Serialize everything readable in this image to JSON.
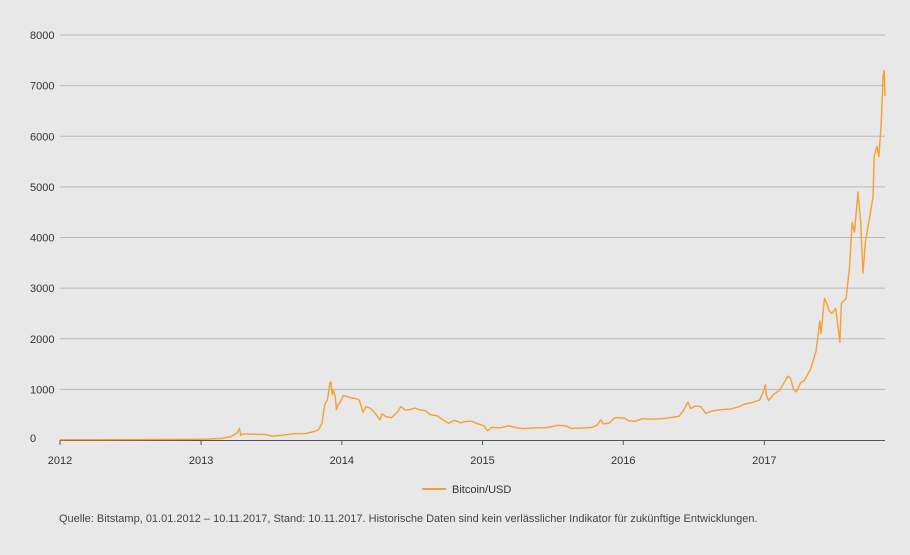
{
  "chart_data": {
    "type": "line",
    "series": [
      {
        "name": "Bitcoin/USD",
        "color": "#f5a030",
        "points": [
          [
            "2012-01-01",
            5
          ],
          [
            "2012-04-01",
            5
          ],
          [
            "2012-07-01",
            7
          ],
          [
            "2012-10-01",
            11
          ],
          [
            "2012-12-15",
            13
          ],
          [
            "2013-01-20",
            18
          ],
          [
            "2013-02-20",
            30
          ],
          [
            "2013-03-20",
            70
          ],
          [
            "2013-04-05",
            140
          ],
          [
            "2013-04-10",
            230
          ],
          [
            "2013-04-14",
            90
          ],
          [
            "2013-04-20",
            120
          ],
          [
            "2013-05-10",
            115
          ],
          [
            "2013-06-15",
            110
          ],
          [
            "2013-07-05",
            75
          ],
          [
            "2013-08-01",
            95
          ],
          [
            "2013-09-01",
            125
          ],
          [
            "2013-10-01",
            130
          ],
          [
            "2013-10-20",
            165
          ],
          [
            "2013-11-01",
            200
          ],
          [
            "2013-11-10",
            320
          ],
          [
            "2013-11-18",
            700
          ],
          [
            "2013-11-25",
            800
          ],
          [
            "2013-12-01",
            1130
          ],
          [
            "2013-12-04",
            1150
          ],
          [
            "2013-12-07",
            890
          ],
          [
            "2013-12-10",
            1000
          ],
          [
            "2013-12-15",
            850
          ],
          [
            "2013-12-18",
            600
          ],
          [
            "2013-12-22",
            700
          ],
          [
            "2013-12-28",
            750
          ],
          [
            "2014-01-05",
            880
          ],
          [
            "2014-01-15",
            860
          ],
          [
            "2014-01-25",
            830
          ],
          [
            "2014-02-05",
            820
          ],
          [
            "2014-02-15",
            790
          ],
          [
            "2014-02-25",
            550
          ],
          [
            "2014-03-05",
            660
          ],
          [
            "2014-03-15",
            630
          ],
          [
            "2014-03-25",
            560
          ],
          [
            "2014-04-05",
            450
          ],
          [
            "2014-04-10",
            400
          ],
          [
            "2014-04-15",
            520
          ],
          [
            "2014-04-25",
            460
          ],
          [
            "2014-05-10",
            440
          ],
          [
            "2014-05-25",
            550
          ],
          [
            "2014-06-03",
            660
          ],
          [
            "2014-06-15",
            590
          ],
          [
            "2014-06-25",
            600
          ],
          [
            "2014-07-10",
            630
          ],
          [
            "2014-07-25",
            590
          ],
          [
            "2014-08-05",
            580
          ],
          [
            "2014-08-18",
            500
          ],
          [
            "2014-09-05",
            480
          ],
          [
            "2014-09-20",
            400
          ],
          [
            "2014-10-05",
            330
          ],
          [
            "2014-10-20",
            390
          ],
          [
            "2014-11-05",
            340
          ],
          [
            "2014-11-20",
            370
          ],
          [
            "2014-12-05",
            370
          ],
          [
            "2014-12-20",
            320
          ],
          [
            "2015-01-05",
            280
          ],
          [
            "2015-01-14",
            180
          ],
          [
            "2015-01-25",
            250
          ],
          [
            "2015-02-15",
            240
          ],
          [
            "2015-03-10",
            280
          ],
          [
            "2015-03-25",
            250
          ],
          [
            "2015-04-15",
            225
          ],
          [
            "2015-05-15",
            240
          ],
          [
            "2015-06-15",
            245
          ],
          [
            "2015-07-05",
            270
          ],
          [
            "2015-07-15",
            290
          ],
          [
            "2015-08-05",
            280
          ],
          [
            "2015-08-20",
            230
          ],
          [
            "2015-09-15",
            235
          ],
          [
            "2015-10-10",
            245
          ],
          [
            "2015-10-25",
            290
          ],
          [
            "2015-11-04",
            400
          ],
          [
            "2015-11-10",
            320
          ],
          [
            "2015-11-25",
            330
          ],
          [
            "2015-12-10",
            440
          ],
          [
            "2015-12-20",
            440
          ],
          [
            "2016-01-05",
            430
          ],
          [
            "2016-01-15",
            380
          ],
          [
            "2016-02-01",
            370
          ],
          [
            "2016-02-20",
            420
          ],
          [
            "2016-03-10",
            410
          ],
          [
            "2016-04-10",
            420
          ],
          [
            "2016-05-10",
            450
          ],
          [
            "2016-05-25",
            470
          ],
          [
            "2016-06-05",
            580
          ],
          [
            "2016-06-17",
            750
          ],
          [
            "2016-06-24",
            620
          ],
          [
            "2016-07-05",
            670
          ],
          [
            "2016-07-20",
            660
          ],
          [
            "2016-08-02",
            530
          ],
          [
            "2016-08-20",
            575
          ],
          [
            "2016-09-15",
            605
          ],
          [
            "2016-10-05",
            610
          ],
          [
            "2016-10-25",
            650
          ],
          [
            "2016-11-10",
            710
          ],
          [
            "2016-12-01",
            740
          ],
          [
            "2016-12-20",
            790
          ],
          [
            "2016-12-28",
            930
          ],
          [
            "2017-01-04",
            1100
          ],
          [
            "2017-01-06",
            880
          ],
          [
            "2017-01-12",
            780
          ],
          [
            "2017-01-25",
            900
          ],
          [
            "2017-02-10",
            990
          ],
          [
            "2017-02-25",
            1180
          ],
          [
            "2017-03-03",
            1260
          ],
          [
            "2017-03-10",
            1220
          ],
          [
            "2017-03-18",
            1000
          ],
          [
            "2017-03-25",
            950
          ],
          [
            "2017-04-05",
            1130
          ],
          [
            "2017-04-15",
            1180
          ],
          [
            "2017-05-01",
            1400
          ],
          [
            "2017-05-15",
            1750
          ],
          [
            "2017-05-25",
            2350
          ],
          [
            "2017-05-28",
            2100
          ],
          [
            "2017-06-06",
            2800
          ],
          [
            "2017-06-12",
            2700
          ],
          [
            "2017-06-18",
            2550
          ],
          [
            "2017-06-25",
            2500
          ],
          [
            "2017-07-05",
            2600
          ],
          [
            "2017-07-16",
            1930
          ],
          [
            "2017-07-20",
            2700
          ],
          [
            "2017-08-01",
            2800
          ],
          [
            "2017-08-10",
            3400
          ],
          [
            "2017-08-17",
            4300
          ],
          [
            "2017-08-23",
            4100
          ],
          [
            "2017-09-01",
            4900
          ],
          [
            "2017-09-08",
            4300
          ],
          [
            "2017-09-14",
            3300
          ],
          [
            "2017-09-20",
            3900
          ],
          [
            "2017-09-30",
            4350
          ],
          [
            "2017-10-10",
            4800
          ],
          [
            "2017-10-13",
            5600
          ],
          [
            "2017-10-20",
            5800
          ],
          [
            "2017-10-25",
            5600
          ],
          [
            "2017-10-31",
            6200
          ],
          [
            "2017-11-05",
            7200
          ],
          [
            "2017-11-08",
            7300
          ],
          [
            "2017-11-10",
            6800
          ]
        ]
      }
    ],
    "x_ticks": [
      "2012",
      "2013",
      "2014",
      "2015",
      "2016",
      "2017"
    ],
    "y_ticks": [
      0,
      1000,
      2000,
      3000,
      4000,
      5000,
      6000,
      7000,
      8000
    ],
    "ylim": [
      0,
      8000
    ],
    "xlim": [
      "2012-01-01",
      "2017-11-10"
    ],
    "grid": "horizontal",
    "legend": "bottom-center",
    "axis_color": "#555555",
    "grid_color": "#b8b8b8"
  },
  "footer": {
    "source": "Quelle: Bitstamp, 01.01.2012 – 10.11.2017, Stand: 10.11.2017. Historische Daten sind kein verlässlicher Indikator für zukünftige Entwicklungen."
  }
}
